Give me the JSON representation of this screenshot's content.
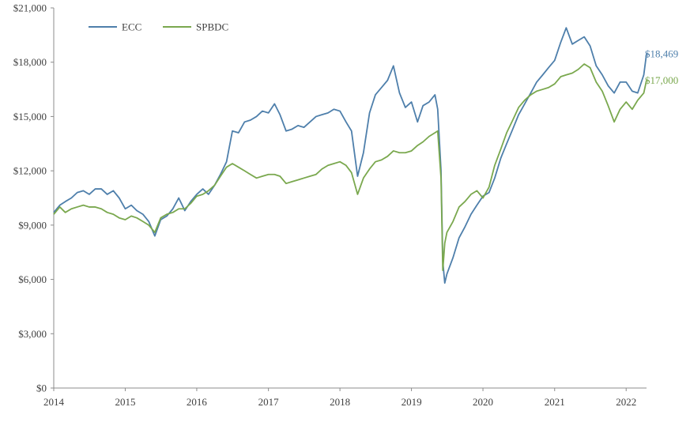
{
  "chart_data": {
    "type": "line",
    "title": "",
    "xlabel": "",
    "ylabel": "",
    "ylim": [
      0,
      21000
    ],
    "xlim": [
      "2014-01-01",
      "2022-04-15"
    ],
    "grid": false,
    "legend_position": "top-left",
    "y_ticks": [
      0,
      3000,
      6000,
      9000,
      12000,
      15000,
      18000,
      21000
    ],
    "y_tick_labels": [
      "$0",
      "$3,000",
      "$6,000",
      "$9,000",
      "$12,000",
      "$15,000",
      "$18,000",
      "$21,000"
    ],
    "x_ticks": [
      "2014-01-01",
      "2015-01-01",
      "2016-01-01",
      "2017-01-01",
      "2018-01-01",
      "2019-01-01",
      "2020-01-01",
      "2021-01-01",
      "2022-01-01"
    ],
    "x_tick_labels": [
      "2014",
      "2015",
      "2016",
      "2017",
      "2018",
      "2019",
      "2020",
      "2021",
      "2022"
    ],
    "series": [
      {
        "name": "ECC",
        "color": "#4e7fab",
        "end_label": "$18,469",
        "points": [
          [
            "2014-01-01",
            9700
          ],
          [
            "2014-02-01",
            10100
          ],
          [
            "2014-03-01",
            10300
          ],
          [
            "2014-04-01",
            10500
          ],
          [
            "2014-05-01",
            10800
          ],
          [
            "2014-06-01",
            10900
          ],
          [
            "2014-07-01",
            10700
          ],
          [
            "2014-08-01",
            11000
          ],
          [
            "2014-09-01",
            11000
          ],
          [
            "2014-10-01",
            10700
          ],
          [
            "2014-11-01",
            10900
          ],
          [
            "2014-12-01",
            10500
          ],
          [
            "2015-01-01",
            9900
          ],
          [
            "2015-02-01",
            10100
          ],
          [
            "2015-03-01",
            9800
          ],
          [
            "2015-04-01",
            9600
          ],
          [
            "2015-05-01",
            9200
          ],
          [
            "2015-06-01",
            8400
          ],
          [
            "2015-07-01",
            9300
          ],
          [
            "2015-08-01",
            9500
          ],
          [
            "2015-09-01",
            9900
          ],
          [
            "2015-10-01",
            10500
          ],
          [
            "2015-11-01",
            9800
          ],
          [
            "2015-12-01",
            10300
          ],
          [
            "2016-01-01",
            10700
          ],
          [
            "2016-02-01",
            11000
          ],
          [
            "2016-03-01",
            10700
          ],
          [
            "2016-04-01",
            11200
          ],
          [
            "2016-05-01",
            11800
          ],
          [
            "2016-06-01",
            12500
          ],
          [
            "2016-07-01",
            14200
          ],
          [
            "2016-08-01",
            14100
          ],
          [
            "2016-09-01",
            14700
          ],
          [
            "2016-10-01",
            14800
          ],
          [
            "2016-11-01",
            15000
          ],
          [
            "2016-12-01",
            15300
          ],
          [
            "2017-01-01",
            15200
          ],
          [
            "2017-02-01",
            15700
          ],
          [
            "2017-03-01",
            15100
          ],
          [
            "2017-04-01",
            14200
          ],
          [
            "2017-05-01",
            14300
          ],
          [
            "2017-06-01",
            14500
          ],
          [
            "2017-07-01",
            14400
          ],
          [
            "2017-08-01",
            14700
          ],
          [
            "2017-09-01",
            15000
          ],
          [
            "2017-10-01",
            15100
          ],
          [
            "2017-11-01",
            15200
          ],
          [
            "2017-12-01",
            15400
          ],
          [
            "2018-01-01",
            15300
          ],
          [
            "2018-02-01",
            14700
          ],
          [
            "2018-03-01",
            14200
          ],
          [
            "2018-04-01",
            11700
          ],
          [
            "2018-05-01",
            13000
          ],
          [
            "2018-06-01",
            15200
          ],
          [
            "2018-07-01",
            16200
          ],
          [
            "2018-08-01",
            16600
          ],
          [
            "2018-09-01",
            17000
          ],
          [
            "2018-10-01",
            17800
          ],
          [
            "2018-11-01",
            16300
          ],
          [
            "2018-12-01",
            15500
          ],
          [
            "2019-01-01",
            15800
          ],
          [
            "2019-02-01",
            14700
          ],
          [
            "2019-03-01",
            15600
          ],
          [
            "2019-04-01",
            15800
          ],
          [
            "2019-05-01",
            16200
          ],
          [
            "2019-05-15",
            15400
          ],
          [
            "2019-06-01",
            12000
          ],
          [
            "2019-06-10",
            7000
          ],
          [
            "2019-06-20",
            5800
          ],
          [
            "2019-07-01",
            6300
          ],
          [
            "2019-08-01",
            7200
          ],
          [
            "2019-09-01",
            8300
          ],
          [
            "2019-10-01",
            8900
          ],
          [
            "2019-11-01",
            9600
          ],
          [
            "2019-12-01",
            10100
          ],
          [
            "2020-01-01",
            10600
          ],
          [
            "2020-02-01",
            10800
          ],
          [
            "2020-03-01",
            11600
          ],
          [
            "2020-04-01",
            12700
          ],
          [
            "2020-05-01",
            13500
          ],
          [
            "2020-06-01",
            14300
          ],
          [
            "2020-07-01",
            15100
          ],
          [
            "2020-08-01",
            15700
          ],
          [
            "2020-09-01",
            16300
          ],
          [
            "2020-10-01",
            16900
          ],
          [
            "2020-11-01",
            17300
          ],
          [
            "2020-12-01",
            17700
          ],
          [
            "2021-01-01",
            18100
          ],
          [
            "2021-02-01",
            19100
          ],
          [
            "2021-03-01",
            19900
          ],
          [
            "2021-04-01",
            19000
          ],
          [
            "2021-05-01",
            19200
          ],
          [
            "2021-06-01",
            19400
          ],
          [
            "2021-07-01",
            18900
          ],
          [
            "2021-08-01",
            17800
          ],
          [
            "2021-09-01",
            17300
          ],
          [
            "2021-10-01",
            16700
          ],
          [
            "2021-11-01",
            16300
          ],
          [
            "2021-12-01",
            16900
          ],
          [
            "2022-01-01",
            16900
          ],
          [
            "2022-02-01",
            16400
          ],
          [
            "2022-03-01",
            16300
          ],
          [
            "2022-04-01",
            17300
          ],
          [
            "2022-04-15",
            18469
          ]
        ]
      },
      {
        "name": "SPBDC",
        "color": "#7aa84e",
        "end_label": "$17,000",
        "points": [
          [
            "2014-01-01",
            9600
          ],
          [
            "2014-02-01",
            10000
          ],
          [
            "2014-03-01",
            9700
          ],
          [
            "2014-04-01",
            9900
          ],
          [
            "2014-05-01",
            10000
          ],
          [
            "2014-06-01",
            10100
          ],
          [
            "2014-07-01",
            10000
          ],
          [
            "2014-08-01",
            10000
          ],
          [
            "2014-09-01",
            9900
          ],
          [
            "2014-10-01",
            9700
          ],
          [
            "2014-11-01",
            9600
          ],
          [
            "2014-12-01",
            9400
          ],
          [
            "2015-01-01",
            9300
          ],
          [
            "2015-02-01",
            9500
          ],
          [
            "2015-03-01",
            9400
          ],
          [
            "2015-04-01",
            9200
          ],
          [
            "2015-05-01",
            9000
          ],
          [
            "2015-06-01",
            8600
          ],
          [
            "2015-07-01",
            9400
          ],
          [
            "2015-08-01",
            9600
          ],
          [
            "2015-09-01",
            9700
          ],
          [
            "2015-10-01",
            9900
          ],
          [
            "2015-11-01",
            9900
          ],
          [
            "2015-12-01",
            10200
          ],
          [
            "2016-01-01",
            10600
          ],
          [
            "2016-02-01",
            10700
          ],
          [
            "2016-03-01",
            10900
          ],
          [
            "2016-04-01",
            11200
          ],
          [
            "2016-05-01",
            11700
          ],
          [
            "2016-06-01",
            12200
          ],
          [
            "2016-07-01",
            12400
          ],
          [
            "2016-08-01",
            12200
          ],
          [
            "2016-09-01",
            12000
          ],
          [
            "2016-10-01",
            11800
          ],
          [
            "2016-11-01",
            11600
          ],
          [
            "2016-12-01",
            11700
          ],
          [
            "2017-01-01",
            11800
          ],
          [
            "2017-02-01",
            11800
          ],
          [
            "2017-03-01",
            11700
          ],
          [
            "2017-04-01",
            11300
          ],
          [
            "2017-05-01",
            11400
          ],
          [
            "2017-06-01",
            11500
          ],
          [
            "2017-07-01",
            11600
          ],
          [
            "2017-08-01",
            11700
          ],
          [
            "2017-09-01",
            11800
          ],
          [
            "2017-10-01",
            12100
          ],
          [
            "2017-11-01",
            12300
          ],
          [
            "2017-12-01",
            12400
          ],
          [
            "2018-01-01",
            12500
          ],
          [
            "2018-02-01",
            12300
          ],
          [
            "2018-03-01",
            11900
          ],
          [
            "2018-04-01",
            10700
          ],
          [
            "2018-05-01",
            11600
          ],
          [
            "2018-06-01",
            12100
          ],
          [
            "2018-07-01",
            12500
          ],
          [
            "2018-08-01",
            12600
          ],
          [
            "2018-09-01",
            12800
          ],
          [
            "2018-10-01",
            13100
          ],
          [
            "2018-11-01",
            13000
          ],
          [
            "2018-12-01",
            13000
          ],
          [
            "2019-01-01",
            13100
          ],
          [
            "2019-02-01",
            13400
          ],
          [
            "2019-03-01",
            13600
          ],
          [
            "2019-04-01",
            13900
          ],
          [
            "2019-05-01",
            14100
          ],
          [
            "2019-05-15",
            14200
          ],
          [
            "2019-06-01",
            11600
          ],
          [
            "2019-06-10",
            6500
          ],
          [
            "2019-06-20",
            8000
          ],
          [
            "2019-07-01",
            8600
          ],
          [
            "2019-08-01",
            9200
          ],
          [
            "2019-09-01",
            10000
          ],
          [
            "2019-10-01",
            10300
          ],
          [
            "2019-11-01",
            10700
          ],
          [
            "2019-12-01",
            10900
          ],
          [
            "2020-01-01",
            10500
          ],
          [
            "2020-02-01",
            11100
          ],
          [
            "2020-03-01",
            12300
          ],
          [
            "2020-04-01",
            13200
          ],
          [
            "2020-05-01",
            14100
          ],
          [
            "2020-06-01",
            14800
          ],
          [
            "2020-07-01",
            15500
          ],
          [
            "2020-08-01",
            15900
          ],
          [
            "2020-09-01",
            16200
          ],
          [
            "2020-10-01",
            16400
          ],
          [
            "2020-11-01",
            16500
          ],
          [
            "2020-12-01",
            16600
          ],
          [
            "2021-01-01",
            16800
          ],
          [
            "2021-02-01",
            17200
          ],
          [
            "2021-03-01",
            17300
          ],
          [
            "2021-04-01",
            17400
          ],
          [
            "2021-05-01",
            17600
          ],
          [
            "2021-06-01",
            17900
          ],
          [
            "2021-07-01",
            17700
          ],
          [
            "2021-08-01",
            16900
          ],
          [
            "2021-09-01",
            16400
          ],
          [
            "2021-10-01",
            15600
          ],
          [
            "2021-11-01",
            14700
          ],
          [
            "2021-12-01",
            15400
          ],
          [
            "2022-01-01",
            15800
          ],
          [
            "2022-02-01",
            15400
          ],
          [
            "2022-03-01",
            15900
          ],
          [
            "2022-04-01",
            16300
          ],
          [
            "2022-04-15",
            17000
          ]
        ]
      }
    ]
  }
}
